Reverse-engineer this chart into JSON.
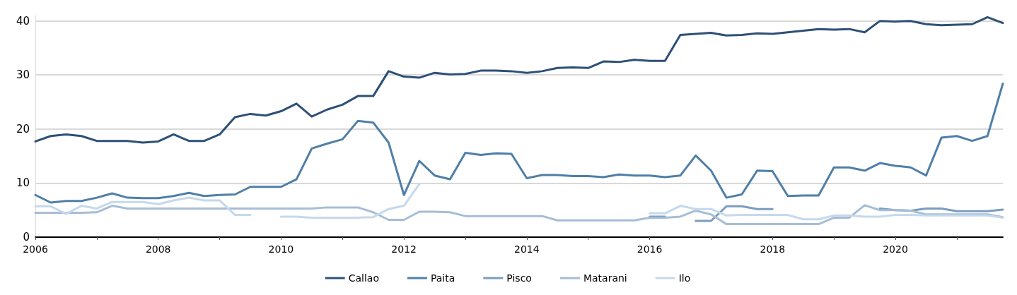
{
  "chart_data": {
    "type": "line",
    "x": [
      2006,
      2006.25,
      2006.5,
      2006.75,
      2007,
      2007.25,
      2007.5,
      2007.75,
      2008,
      2008.25,
      2008.5,
      2008.75,
      2009,
      2009.25,
      2009.5,
      2009.75,
      2010,
      2010.25,
      2010.5,
      2010.75,
      2011,
      2011.25,
      2011.5,
      2011.75,
      2012,
      2012.25,
      2012.5,
      2012.75,
      2013,
      2013.25,
      2013.5,
      2013.75,
      2014,
      2014.25,
      2014.5,
      2014.75,
      2015,
      2015.25,
      2015.5,
      2015.75,
      2016,
      2016.25,
      2016.5,
      2016.75,
      2017,
      2017.25,
      2017.5,
      2017.75,
      2018,
      2018.25,
      2018.5,
      2018.75,
      2019,
      2019.25,
      2019.5,
      2019.75,
      2020,
      2020.25,
      2020.5,
      2020.75,
      2021,
      2021.25,
      2021.5,
      2021.75
    ],
    "series": [
      {
        "name": "Callao",
        "color": "#2e5077",
        "values": [
          17.7,
          18.7,
          19.0,
          18.7,
          17.8,
          17.8,
          17.8,
          17.5,
          17.7,
          19.0,
          17.8,
          17.8,
          19.0,
          22.2,
          22.8,
          22.5,
          23.3,
          24.7,
          22.3,
          23.6,
          24.5,
          26.1,
          26.1,
          30.7,
          29.7,
          29.5,
          30.4,
          30.1,
          30.2,
          30.8,
          30.8,
          30.7,
          30.4,
          30.7,
          31.3,
          31.4,
          31.3,
          32.5,
          32.4,
          32.8,
          32.6,
          32.6,
          37.4,
          37.6,
          37.8,
          37.3,
          37.4,
          37.7,
          37.6,
          37.9,
          38.2,
          38.5,
          38.4,
          38.5,
          37.9,
          40.0,
          39.9,
          40.0,
          39.4,
          39.2,
          39.3,
          39.4,
          40.7,
          39.6
        ]
      },
      {
        "name": "Paita",
        "color": "#4f7fa8",
        "values": [
          7.8,
          6.4,
          6.7,
          6.7,
          7.3,
          8.1,
          7.3,
          7.2,
          7.2,
          7.6,
          8.2,
          7.6,
          7.8,
          7.9,
          9.3,
          9.3,
          9.3,
          10.7,
          16.4,
          17.3,
          18.1,
          21.5,
          21.2,
          17.5,
          7.8,
          14.1,
          11.4,
          10.7,
          15.6,
          15.2,
          15.5,
          15.4,
          10.9,
          11.5,
          11.5,
          11.3,
          11.3,
          11.1,
          11.6,
          11.4,
          11.4,
          11.1,
          11.4,
          15.1,
          12.3,
          7.3,
          7.9,
          12.3,
          12.2,
          7.6,
          7.7,
          7.7,
          12.9,
          12.9,
          12.3,
          13.7,
          13.2,
          12.9,
          11.4,
          18.4,
          18.7,
          17.8,
          18.7,
          28.4
        ]
      },
      {
        "name": "Pisco",
        "color": "#7a9dbf",
        "values": [
          null,
          null,
          null,
          null,
          null,
          null,
          null,
          null,
          null,
          null,
          null,
          null,
          null,
          null,
          null,
          null,
          null,
          null,
          null,
          null,
          null,
          null,
          null,
          null,
          null,
          null,
          null,
          null,
          null,
          null,
          null,
          null,
          null,
          null,
          null,
          null,
          null,
          null,
          null,
          null,
          3.8,
          3.8,
          null,
          3.0,
          3.0,
          5.7,
          5.7,
          5.2,
          5.2,
          null,
          null,
          null,
          null,
          null,
          null,
          5.3,
          5.0,
          4.9,
          5.3,
          5.3,
          4.8,
          4.8,
          4.8,
          5.1
        ]
      },
      {
        "name": "Matarani",
        "color": "#a6bdd5",
        "values": [
          4.5,
          4.5,
          4.5,
          4.5,
          4.6,
          5.8,
          5.3,
          5.3,
          5.3,
          5.3,
          5.3,
          5.3,
          5.3,
          5.3,
          5.3,
          5.3,
          5.3,
          5.3,
          5.3,
          5.5,
          5.5,
          5.5,
          4.6,
          3.2,
          3.2,
          4.7,
          4.7,
          4.6,
          3.9,
          3.9,
          3.9,
          3.9,
          3.9,
          3.9,
          3.1,
          3.1,
          3.1,
          3.1,
          3.1,
          3.1,
          3.6,
          3.6,
          3.8,
          4.9,
          4.2,
          2.4,
          2.4,
          2.4,
          2.4,
          2.4,
          2.4,
          2.4,
          3.6,
          3.6,
          5.9,
          5.0,
          5.0,
          4.9,
          4.2,
          4.2,
          4.2,
          4.2,
          4.2,
          3.7
        ]
      },
      {
        "name": "Ilo",
        "color": "#c5d9ec",
        "values": [
          5.7,
          5.7,
          4.3,
          5.8,
          5.3,
          6.5,
          6.5,
          6.5,
          6.1,
          6.8,
          7.3,
          6.8,
          6.8,
          4.1,
          4.1,
          null,
          3.8,
          3.8,
          3.6,
          3.6,
          3.6,
          3.6,
          3.7,
          5.2,
          5.8,
          9.8,
          null,
          null,
          null,
          null,
          null,
          null,
          null,
          null,
          null,
          null,
          null,
          null,
          null,
          null,
          4.4,
          4.4,
          5.8,
          5.2,
          5.2,
          4.0,
          4.1,
          4.1,
          4.1,
          4.1,
          3.3,
          3.3,
          4.0,
          4.0,
          3.8,
          3.8,
          4.1,
          4.1,
          4.0,
          4.0,
          4.0,
          4.0,
          4.0,
          3.6
        ]
      }
    ],
    "xlim": [
      2006,
      2021.75
    ],
    "xticks": [
      2006,
      {
        "value": 2007,
        "label": null
      },
      2008,
      {
        "value": 2009,
        "label": null
      },
      2010,
      {
        "value": 2011,
        "label": null
      },
      2012,
      {
        "value": 2013,
        "label": null
      },
      2014,
      {
        "value": 2015,
        "label": null
      },
      2016,
      {
        "value": 2017,
        "label": null
      },
      2018,
      {
        "value": 2019,
        "label": null
      },
      2020,
      {
        "value": 2021,
        "label": null
      }
    ],
    "ylim": [
      0,
      41
    ],
    "yticks": [
      0,
      10,
      20,
      30,
      40
    ],
    "grid": "y",
    "legend": "bottom",
    "marker": "none",
    "line_style": "solid"
  }
}
